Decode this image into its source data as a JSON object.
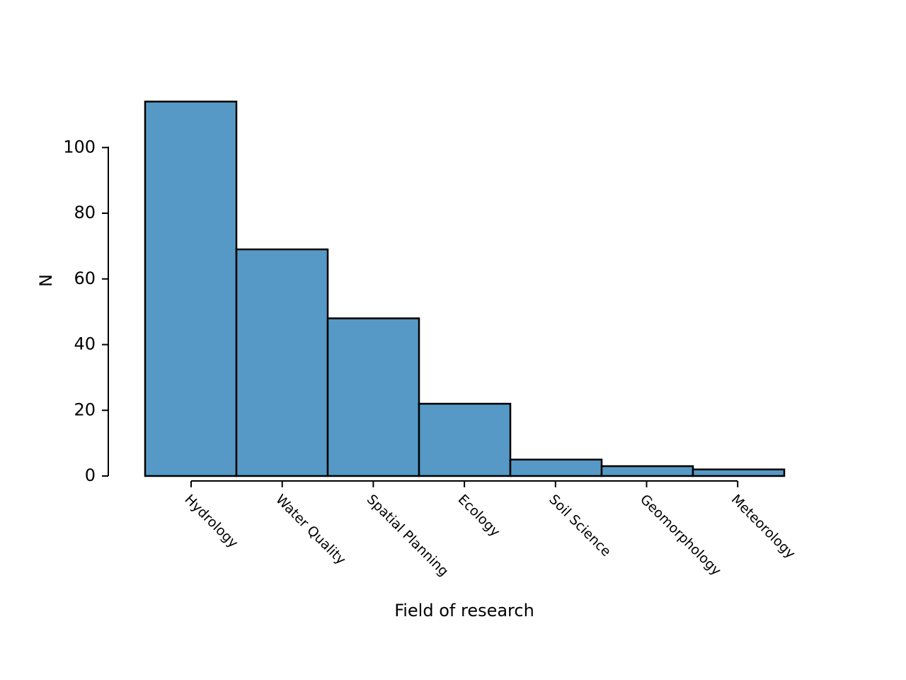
{
  "chart_data": {
    "type": "bar",
    "categories": [
      "Hydrology",
      "Water Quality",
      "Spatial Planning",
      "Ecology",
      "Soil Science",
      "Geomorphology",
      "Meteorology"
    ],
    "values": [
      114,
      69,
      48,
      22,
      5,
      3,
      2
    ],
    "xlabel": "Field of research",
    "ylabel": "N",
    "ylim": [
      0,
      114
    ],
    "yticks": [
      0,
      20,
      40,
      60,
      80,
      100
    ],
    "grid": false,
    "legend": "none",
    "bar_color": "#5699c6",
    "edge_color": "#000000"
  }
}
